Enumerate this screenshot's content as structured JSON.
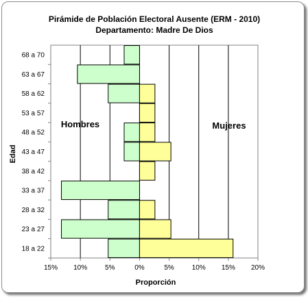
{
  "chart_data": {
    "type": "bar",
    "orientation": "horizontal",
    "subtype": "population-pyramid",
    "title": "Pirámide de Población  Electoral Ausente (ERM - 2010)",
    "subtitle": "Departamento: Madre De Dios",
    "xlabel": "Proporción",
    "ylabel": "Edad",
    "xlim": [
      -15,
      20
    ],
    "xticks": [
      -15,
      -10,
      -5,
      0,
      5,
      10,
      15,
      20
    ],
    "xtick_labels": [
      "15%",
      "10%",
      "5%",
      "0%",
      "5%",
      "10%",
      "15%",
      "20%"
    ],
    "grid": "vertical",
    "categories": [
      "68 a 70",
      "63 a 67",
      "58 a 62",
      "53 a 57",
      "48 a 52",
      "43 a 47",
      "38 a 42",
      "33 a 37",
      "28 a 32",
      "23 a 27",
      "18 a 22"
    ],
    "series": [
      {
        "name": "Hombres",
        "color": "#ccffcc",
        "values": [
          2.6,
          10.5,
          5.3,
          0,
          2.6,
          2.6,
          0,
          13.2,
          5.3,
          13.2,
          5.3
        ]
      },
      {
        "name": "Mujeres",
        "color": "#ffff99",
        "values": [
          0,
          0,
          2.6,
          2.6,
          2.6,
          5.3,
          2.6,
          0,
          2.6,
          5.3,
          15.8
        ]
      }
    ],
    "annotations": [
      "Hombres",
      "Mujeres"
    ]
  }
}
